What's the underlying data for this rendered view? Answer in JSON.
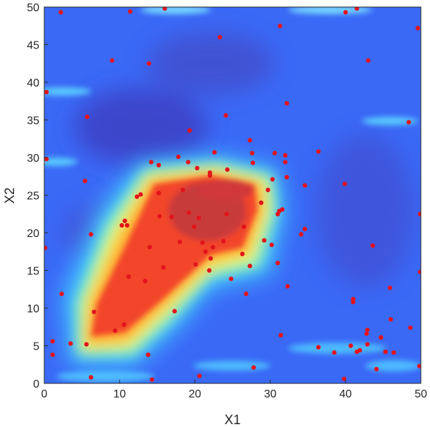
{
  "chart_data": {
    "type": "heatmap",
    "title": "",
    "xlabel": "X1",
    "ylabel": "X2",
    "xlim": [
      0,
      50
    ],
    "ylim": [
      0,
      50
    ],
    "xticks": [
      "0",
      "10",
      "20",
      "30",
      "40",
      "50"
    ],
    "yticks": [
      "0",
      "5",
      "10",
      "15",
      "20",
      "25",
      "30",
      "35",
      "40",
      "45",
      "50"
    ],
    "colormap": "jet",
    "colorscale": [
      "#3b3ccf",
      "#3a6cff",
      "#39b7ff",
      "#7ff0c8",
      "#f4f45a",
      "#ffb02e",
      "#ff5a2a",
      "#e3322e"
    ],
    "high_region": {
      "x_range": [
        5,
        31
      ],
      "y_range": [
        4,
        30
      ],
      "shape": "diagonal band, widening from lower-left to upper-center"
    },
    "grid": false,
    "legend": "none",
    "marker_color": "#e2141b",
    "points": [
      [
        0.3,
        38.7
      ],
      [
        0.3,
        29.8
      ],
      [
        0.1,
        18.0
      ],
      [
        1.1,
        5.6
      ],
      [
        1.1,
        3.8
      ],
      [
        2.2,
        49.3
      ],
      [
        2.3,
        11.9
      ],
      [
        3.5,
        5.3
      ],
      [
        5.4,
        26.9
      ],
      [
        5.6,
        5.2
      ],
      [
        5.7,
        35.4
      ],
      [
        6.2,
        19.8
      ],
      [
        6.2,
        0.8
      ],
      [
        6.6,
        9.5
      ],
      [
        9.0,
        42.9
      ],
      [
        9.4,
        7.0
      ],
      [
        10.3,
        21.0
      ],
      [
        10.6,
        7.8
      ],
      [
        10.7,
        21.6
      ],
      [
        11.0,
        21.0
      ],
      [
        11.2,
        14.2
      ],
      [
        11.4,
        49.4
      ],
      [
        12.3,
        24.8
      ],
      [
        12.8,
        25.1
      ],
      [
        13.4,
        13.6
      ],
      [
        13.8,
        3.8
      ],
      [
        13.9,
        42.5
      ],
      [
        14.0,
        18.1
      ],
      [
        14.2,
        29.4
      ],
      [
        14.3,
        0.5
      ],
      [
        15.2,
        29.0
      ],
      [
        15.2,
        25.3
      ],
      [
        15.3,
        22.2
      ],
      [
        15.8,
        15.4
      ],
      [
        16.0,
        49.8
      ],
      [
        16.9,
        22.1
      ],
      [
        17.3,
        9.6
      ],
      [
        17.8,
        30.1
      ],
      [
        18.0,
        18.8
      ],
      [
        18.4,
        25.7
      ],
      [
        19.1,
        29.4
      ],
      [
        19.2,
        22.7
      ],
      [
        19.3,
        33.6
      ],
      [
        19.9,
        20.8
      ],
      [
        20.1,
        15.8
      ],
      [
        20.3,
        28.6
      ],
      [
        20.5,
        22.0
      ],
      [
        20.6,
        1.0
      ],
      [
        21.0,
        18.7
      ],
      [
        21.4,
        17.5
      ],
      [
        21.9,
        15.0
      ],
      [
        22.0,
        27.6
      ],
      [
        22.0,
        28.0
      ],
      [
        22.1,
        16.6
      ],
      [
        22.4,
        18.1
      ],
      [
        22.6,
        30.7
      ],
      [
        23.3,
        46.0
      ],
      [
        23.8,
        18.9
      ],
      [
        24.1,
        35.6
      ],
      [
        24.2,
        22.5
      ],
      [
        24.3,
        28.4
      ],
      [
        24.8,
        13.9
      ],
      [
        26.3,
        17.2
      ],
      [
        26.5,
        20.8
      ],
      [
        26.8,
        11.9
      ],
      [
        27.3,
        15.6
      ],
      [
        27.3,
        32.3
      ],
      [
        27.6,
        30.6
      ],
      [
        27.7,
        29.3
      ],
      [
        27.8,
        2.1
      ],
      [
        28.8,
        24.0
      ],
      [
        29.2,
        19.0
      ],
      [
        29.7,
        25.7
      ],
      [
        30.2,
        18.4
      ],
      [
        30.3,
        27.1
      ],
      [
        30.6,
        30.6
      ],
      [
        31.0,
        22.5
      ],
      [
        31.0,
        16.0
      ],
      [
        31.2,
        22.9
      ],
      [
        31.3,
        47.5
      ],
      [
        31.4,
        6.4
      ],
      [
        31.6,
        23.1
      ],
      [
        32.0,
        29.4
      ],
      [
        32.0,
        30.3
      ],
      [
        32.2,
        27.4
      ],
      [
        32.2,
        37.2
      ],
      [
        32.3,
        12.9
      ],
      [
        34.1,
        19.8
      ],
      [
        34.6,
        26.3
      ],
      [
        34.6,
        20.5
      ],
      [
        36.4,
        30.8
      ],
      [
        36.4,
        4.8
      ],
      [
        38.5,
        4.1
      ],
      [
        39.8,
        0.6
      ],
      [
        39.9,
        26.5
      ],
      [
        40.0,
        49.3
      ],
      [
        40.7,
        5.0
      ],
      [
        41.0,
        11.2
      ],
      [
        41.0,
        10.8
      ],
      [
        41.5,
        4.2
      ],
      [
        41.5,
        49.8
      ],
      [
        41.9,
        4.4
      ],
      [
        42.8,
        6.6
      ],
      [
        42.9,
        5.2
      ],
      [
        42.9,
        7.1
      ],
      [
        43.0,
        42.9
      ],
      [
        43.6,
        18.3
      ],
      [
        44.1,
        1.9
      ],
      [
        44.7,
        6.1
      ],
      [
        45.3,
        4.2
      ],
      [
        45.9,
        12.7
      ],
      [
        46.0,
        8.5
      ],
      [
        46.4,
        4.1
      ],
      [
        48.4,
        34.7
      ],
      [
        48.6,
        7.4
      ],
      [
        49.6,
        47.2
      ],
      [
        49.8,
        2.3
      ],
      [
        49.9,
        22.5
      ],
      [
        49.9,
        14.8
      ]
    ]
  }
}
